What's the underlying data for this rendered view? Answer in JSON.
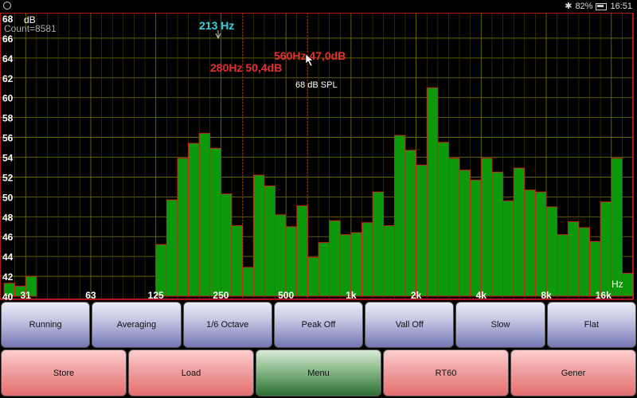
{
  "status_bar": {
    "battery": "82%",
    "time": "16:51",
    "icons": [
      "bluetooth-icon",
      "battery-icon",
      "app-notification-icon"
    ]
  },
  "analyzer": {
    "y_unit": "dB",
    "count_label": "Count=8581",
    "cursor_freq": "213 Hz",
    "marker1": "280Hz  50,4dB",
    "marker2": "560Hz  47,0dB",
    "spl_label": "68 dB SPL",
    "x_unit": "Hz",
    "colors": {
      "bar": "#0c9a0c",
      "bar_edge": "#d62020",
      "grid": "#777700",
      "border": "#b01818",
      "cursor": "#33d3dd",
      "marker": "#e83030"
    }
  },
  "chart_data": {
    "type": "bar",
    "y_ticks": [
      "68",
      "66",
      "64",
      "62",
      "60",
      "58",
      "56",
      "54",
      "52",
      "50",
      "48",
      "46",
      "44",
      "42",
      "40"
    ],
    "x_tick_labels": [
      "31",
      "63",
      "125",
      "250",
      "500",
      "1k",
      "2k",
      "4k",
      "8k",
      "16k"
    ],
    "ylim": [
      40,
      68
    ],
    "values": [
      41.3,
      41.0,
      42.0,
      40.0,
      40.0,
      40.0,
      40.0,
      40.0,
      40.0,
      40.0,
      40.0,
      40.0,
      40.0,
      40.0,
      45.2,
      49.7,
      53.9,
      55.4,
      56.4,
      54.9,
      50.3,
      47.1,
      42.9,
      52.2,
      51.1,
      48.2,
      47.0,
      49.1,
      43.9,
      45.4,
      47.6,
      46.2,
      46.4,
      47.4,
      50.5,
      47.1,
      56.2,
      54.7,
      53.2,
      61.0,
      55.5,
      53.9,
      52.7,
      51.7,
      53.9,
      52.5,
      49.6,
      52.9,
      50.7,
      50.5,
      49.0,
      46.2,
      47.5,
      46.9,
      45.5,
      49.5,
      53.9,
      42.3
    ],
    "selected_band": {
      "freq": "213 Hz"
    },
    "markers": [
      {
        "label": "280Hz  50,4dB"
      },
      {
        "label": "560Hz  47,0dB"
      }
    ]
  },
  "toolbar_top": [
    "Running",
    "Averaging",
    "1/6 Octave",
    "Peak Off",
    "Vall Off",
    "Slow",
    "Flat"
  ],
  "toolbar_bottom": [
    "Store",
    "Load",
    "Menu",
    "RT60",
    "Gener"
  ]
}
